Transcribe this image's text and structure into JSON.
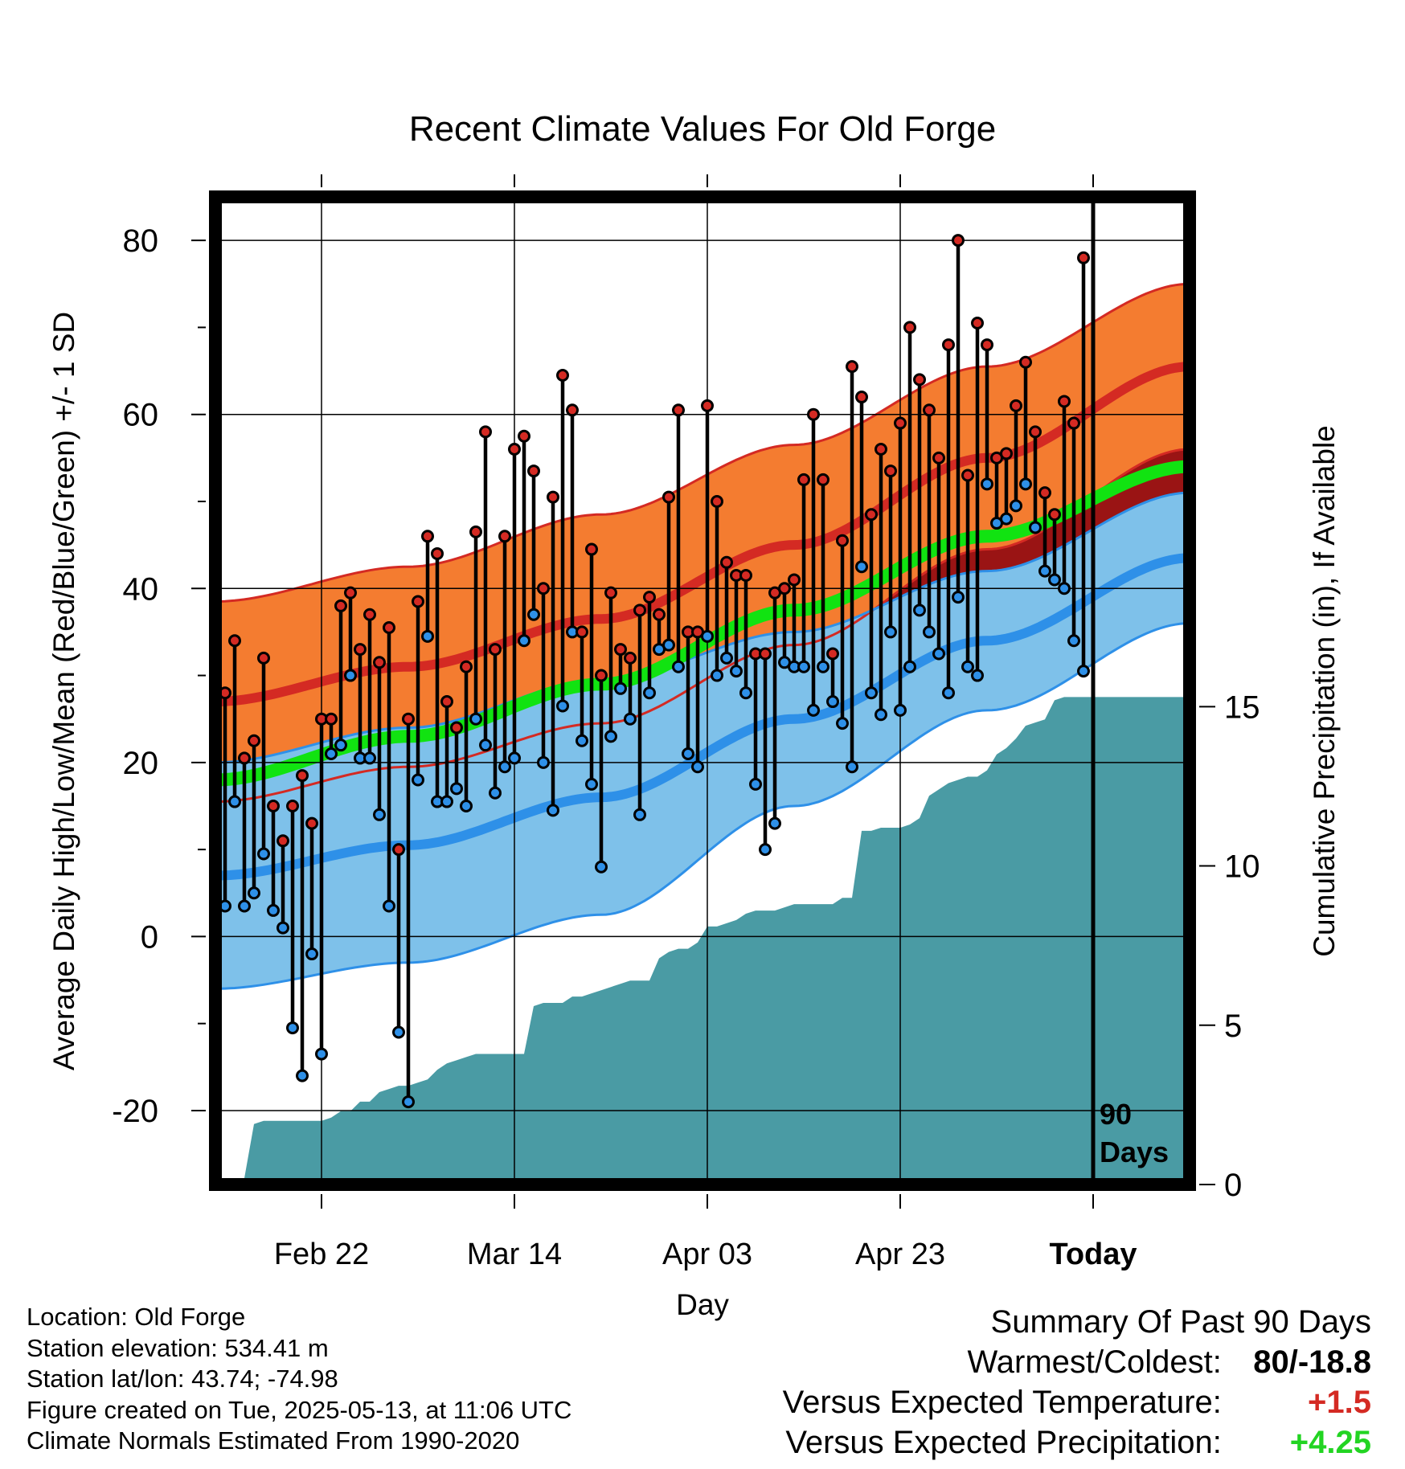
{
  "chart_data": {
    "type": "line",
    "title": "Recent Climate Values For Old Forge",
    "xlabel": "Day",
    "ylabel_left": "Average Daily High/Low/Mean (Red/Blue/Green) +/- 1 SD",
    "ylabel_right": "Cumulative Precipitation (in), If Available",
    "ylim_left": [
      -28.5,
      85
    ],
    "ylim_right": [
      0,
      31
    ],
    "xlim": [
      1,
      102
    ],
    "x_ticks": [
      {
        "day": 12,
        "label": "Feb 22"
      },
      {
        "day": 32,
        "label": "Mar 14"
      },
      {
        "day": 52,
        "label": "Apr 03"
      },
      {
        "day": 72,
        "label": "Apr 23"
      },
      {
        "day": 92,
        "label": "Today"
      }
    ],
    "y_ticks_left": [
      -20,
      0,
      20,
      40,
      60,
      80
    ],
    "y_ticks_right": [
      0,
      5,
      10,
      15
    ],
    "today_marker": {
      "day": 92,
      "label_line1": "90",
      "label_line2": "Days"
    },
    "grid": true,
    "colors": {
      "high_band": "#f47c30",
      "high_band_edge": "#d42a23",
      "high_mean": "#d42a23",
      "low_band": "#7ec1ea",
      "low_band_edge": "#2e90e8",
      "low_mean": "#2e90e8",
      "mean_normal": "#11e311",
      "overlap": "#9a1414",
      "precip": "#4a9ba4",
      "high_marker": "#d42a23",
      "low_marker": "#2e90e8"
    },
    "normals": {
      "day": [
        1,
        21,
        41,
        61,
        81,
        102
      ],
      "high_mean": [
        27,
        31,
        36.5,
        45,
        55,
        65.5
      ],
      "high_sd": [
        11.5,
        11.5,
        12,
        11.5,
        10.5,
        9.5
      ],
      "low_mean": [
        7,
        10.5,
        16,
        25,
        34,
        43.5
      ],
      "low_sd": [
        13,
        13.5,
        13.5,
        10,
        8,
        7.5
      ],
      "mean": [
        18,
        23,
        29,
        37.5,
        46,
        54
      ]
    },
    "daily": [
      {
        "day": 2,
        "high": 28,
        "low": 3.5
      },
      {
        "day": 3,
        "high": 34,
        "low": 15.5
      },
      {
        "day": 4,
        "high": 20.5,
        "low": 3.5
      },
      {
        "day": 5,
        "high": 22.5,
        "low": 5
      },
      {
        "day": 6,
        "high": 32,
        "low": 9.5
      },
      {
        "day": 7,
        "high": 15,
        "low": 3
      },
      {
        "day": 8,
        "high": 11,
        "low": 1
      },
      {
        "day": 9,
        "high": 15,
        "low": -10.5
      },
      {
        "day": 10,
        "high": 18.5,
        "low": -16
      },
      {
        "day": 11,
        "high": 13,
        "low": -2
      },
      {
        "day": 12,
        "high": 25,
        "low": -13.5
      },
      {
        "day": 13,
        "high": 25,
        "low": 21
      },
      {
        "day": 14,
        "high": 38,
        "low": 22
      },
      {
        "day": 15,
        "high": 39.5,
        "low": 30
      },
      {
        "day": 16,
        "high": 33,
        "low": 20.5
      },
      {
        "day": 17,
        "high": 37,
        "low": 20.5
      },
      {
        "day": 18,
        "high": 31.5,
        "low": 14
      },
      {
        "day": 19,
        "high": 35.5,
        "low": 3.5
      },
      {
        "day": 20,
        "high": 10,
        "low": -11
      },
      {
        "day": 21,
        "high": 25,
        "low": -19
      },
      {
        "day": 22,
        "high": 38.5,
        "low": 18
      },
      {
        "day": 23,
        "high": 46,
        "low": 34.5
      },
      {
        "day": 24,
        "high": 44,
        "low": 15.5
      },
      {
        "day": 25,
        "high": 27,
        "low": 15.5
      },
      {
        "day": 26,
        "high": 24,
        "low": 17
      },
      {
        "day": 27,
        "high": 31,
        "low": 15
      },
      {
        "day": 28,
        "high": 46.5,
        "low": 25
      },
      {
        "day": 29,
        "high": 58,
        "low": 22
      },
      {
        "day": 30,
        "high": 33,
        "low": 16.5
      },
      {
        "day": 31,
        "high": 46,
        "low": 19.5
      },
      {
        "day": 32,
        "high": 56,
        "low": 20.5
      },
      {
        "day": 33,
        "high": 57.5,
        "low": 34
      },
      {
        "day": 34,
        "high": 53.5,
        "low": 37
      },
      {
        "day": 35,
        "high": 40,
        "low": 20
      },
      {
        "day": 36,
        "high": 50.5,
        "low": 14.5
      },
      {
        "day": 37,
        "high": 64.5,
        "low": 26.5
      },
      {
        "day": 38,
        "high": 60.5,
        "low": 35
      },
      {
        "day": 39,
        "high": 35,
        "low": 22.5
      },
      {
        "day": 40,
        "high": 44.5,
        "low": 17.5
      },
      {
        "day": 41,
        "high": 30,
        "low": 8
      },
      {
        "day": 42,
        "high": 39.5,
        "low": 23
      },
      {
        "day": 43,
        "high": 33,
        "low": 28.5
      },
      {
        "day": 44,
        "high": 32,
        "low": 25
      },
      {
        "day": 45,
        "high": 37.5,
        "low": 14
      },
      {
        "day": 46,
        "high": 39,
        "low": 28
      },
      {
        "day": 47,
        "high": 37,
        "low": 33
      },
      {
        "day": 48,
        "high": 50.5,
        "low": 33.5
      },
      {
        "day": 49,
        "high": 60.5,
        "low": 31
      },
      {
        "day": 50,
        "high": 35,
        "low": 21
      },
      {
        "day": 51,
        "high": 35,
        "low": 19.5
      },
      {
        "day": 52,
        "high": 61,
        "low": 34.5
      },
      {
        "day": 53,
        "high": 50,
        "low": 30
      },
      {
        "day": 54,
        "high": 43,
        "low": 32
      },
      {
        "day": 55,
        "high": 41.5,
        "low": 30.5
      },
      {
        "day": 56,
        "high": 41.5,
        "low": 28
      },
      {
        "day": 57,
        "high": 32.5,
        "low": 17.5
      },
      {
        "day": 58,
        "high": 32.5,
        "low": 10
      },
      {
        "day": 59,
        "high": 39.5,
        "low": 13
      },
      {
        "day": 60,
        "high": 40,
        "low": 31.5
      },
      {
        "day": 61,
        "high": 41,
        "low": 31
      },
      {
        "day": 62,
        "high": 52.5,
        "low": 31
      },
      {
        "day": 63,
        "high": 60,
        "low": 26
      },
      {
        "day": 64,
        "high": 52.5,
        "low": 31
      },
      {
        "day": 65,
        "high": 32.5,
        "low": 27
      },
      {
        "day": 66,
        "high": 45.5,
        "low": 24.5
      },
      {
        "day": 67,
        "high": 65.5,
        "low": 19.5
      },
      {
        "day": 68,
        "high": 62,
        "low": 42.5
      },
      {
        "day": 69,
        "high": 48.5,
        "low": 28
      },
      {
        "day": 70,
        "high": 56,
        "low": 25.5
      },
      {
        "day": 71,
        "high": 53.5,
        "low": 35
      },
      {
        "day": 72,
        "high": 59,
        "low": 26
      },
      {
        "day": 73,
        "high": 70,
        "low": 31
      },
      {
        "day": 74,
        "high": 64,
        "low": 37.5
      },
      {
        "day": 75,
        "high": 60.5,
        "low": 35
      },
      {
        "day": 76,
        "high": 55,
        "low": 32.5
      },
      {
        "day": 77,
        "high": 68,
        "low": 28
      },
      {
        "day": 78,
        "high": 80,
        "low": 39
      },
      {
        "day": 79,
        "high": 53,
        "low": 31
      },
      {
        "day": 80,
        "high": 70.5,
        "low": 30
      },
      {
        "day": 81,
        "high": 68,
        "low": 52
      },
      {
        "day": 82,
        "high": 55,
        "low": 47.5
      },
      {
        "day": 83,
        "high": 55.5,
        "low": 48
      },
      {
        "day": 84,
        "high": 61,
        "low": 49.5
      },
      {
        "day": 85,
        "high": 66,
        "low": 52
      },
      {
        "day": 86,
        "high": 58,
        "low": 47
      },
      {
        "day": 87,
        "high": 51,
        "low": 42
      },
      {
        "day": 88,
        "high": 48.5,
        "low": 41
      },
      {
        "day": 89,
        "high": 61.5,
        "low": 40
      },
      {
        "day": 90,
        "high": 59,
        "low": 34
      },
      {
        "day": 91,
        "high": 78,
        "low": 30.5
      }
    ],
    "precip": {
      "day": [
        1,
        4,
        5,
        6,
        12,
        13,
        14,
        15,
        16,
        17,
        18,
        19,
        20,
        21,
        22,
        23,
        24,
        25,
        26,
        27,
        28,
        29,
        30,
        31,
        32,
        33,
        34,
        35,
        36,
        37,
        38,
        39,
        40,
        41,
        42,
        43,
        44,
        45,
        46,
        47,
        48,
        49,
        50,
        51,
        52,
        53,
        54,
        55,
        56,
        57,
        58,
        59,
        60,
        61,
        62,
        63,
        64,
        65,
        66,
        67,
        68,
        69,
        70,
        71,
        72,
        73,
        74,
        75,
        76,
        77,
        78,
        79,
        80,
        81,
        82,
        83,
        84,
        85,
        86,
        87,
        88,
        89,
        90,
        91,
        92,
        102
      ],
      "value": [
        0,
        0.2,
        1.9,
        2.0,
        2.0,
        2.1,
        2.3,
        2.3,
        2.6,
        2.6,
        2.9,
        3.0,
        3.1,
        3.1,
        3.2,
        3.3,
        3.6,
        3.8,
        3.9,
        4.0,
        4.1,
        4.1,
        4.1,
        4.1,
        4.1,
        4.1,
        5.6,
        5.7,
        5.7,
        5.7,
        5.9,
        5.9,
        6.0,
        6.1,
        6.2,
        6.3,
        6.4,
        6.4,
        6.4,
        7.1,
        7.3,
        7.4,
        7.4,
        7.6,
        8.1,
        8.1,
        8.2,
        8.3,
        8.5,
        8.6,
        8.6,
        8.6,
        8.7,
        8.8,
        8.8,
        8.8,
        8.8,
        8.8,
        9.0,
        9.0,
        11.1,
        11.1,
        11.2,
        11.2,
        11.2,
        11.3,
        11.5,
        12.2,
        12.4,
        12.6,
        12.7,
        12.8,
        12.8,
        13.0,
        13.5,
        13.7,
        14.0,
        14.4,
        14.5,
        14.6,
        15.2,
        15.3,
        15.3,
        15.3,
        15.3,
        15.3
      ]
    }
  },
  "footer": {
    "location": "Location: Old Forge",
    "elevation": "Station elevation: 534.41 m",
    "latlon": "Station lat/lon: 43.74; -74.98",
    "created": "Figure created on Tue, 2025-05-13, at 11:06 UTC",
    "normals": "Climate Normals Estimated From 1990-2020"
  },
  "summary": {
    "title": "Summary Of Past 90 Days",
    "warmest_label": "Warmest/Coldest:",
    "warmest_value": "80/-18.8",
    "temp_label": "Versus Expected Temperature:",
    "temp_value": "+1.5",
    "temp_color": "#d42a23",
    "precip_label": "Versus Expected Precipitation:",
    "precip_value": "+4.25",
    "precip_color": "#22d422"
  }
}
